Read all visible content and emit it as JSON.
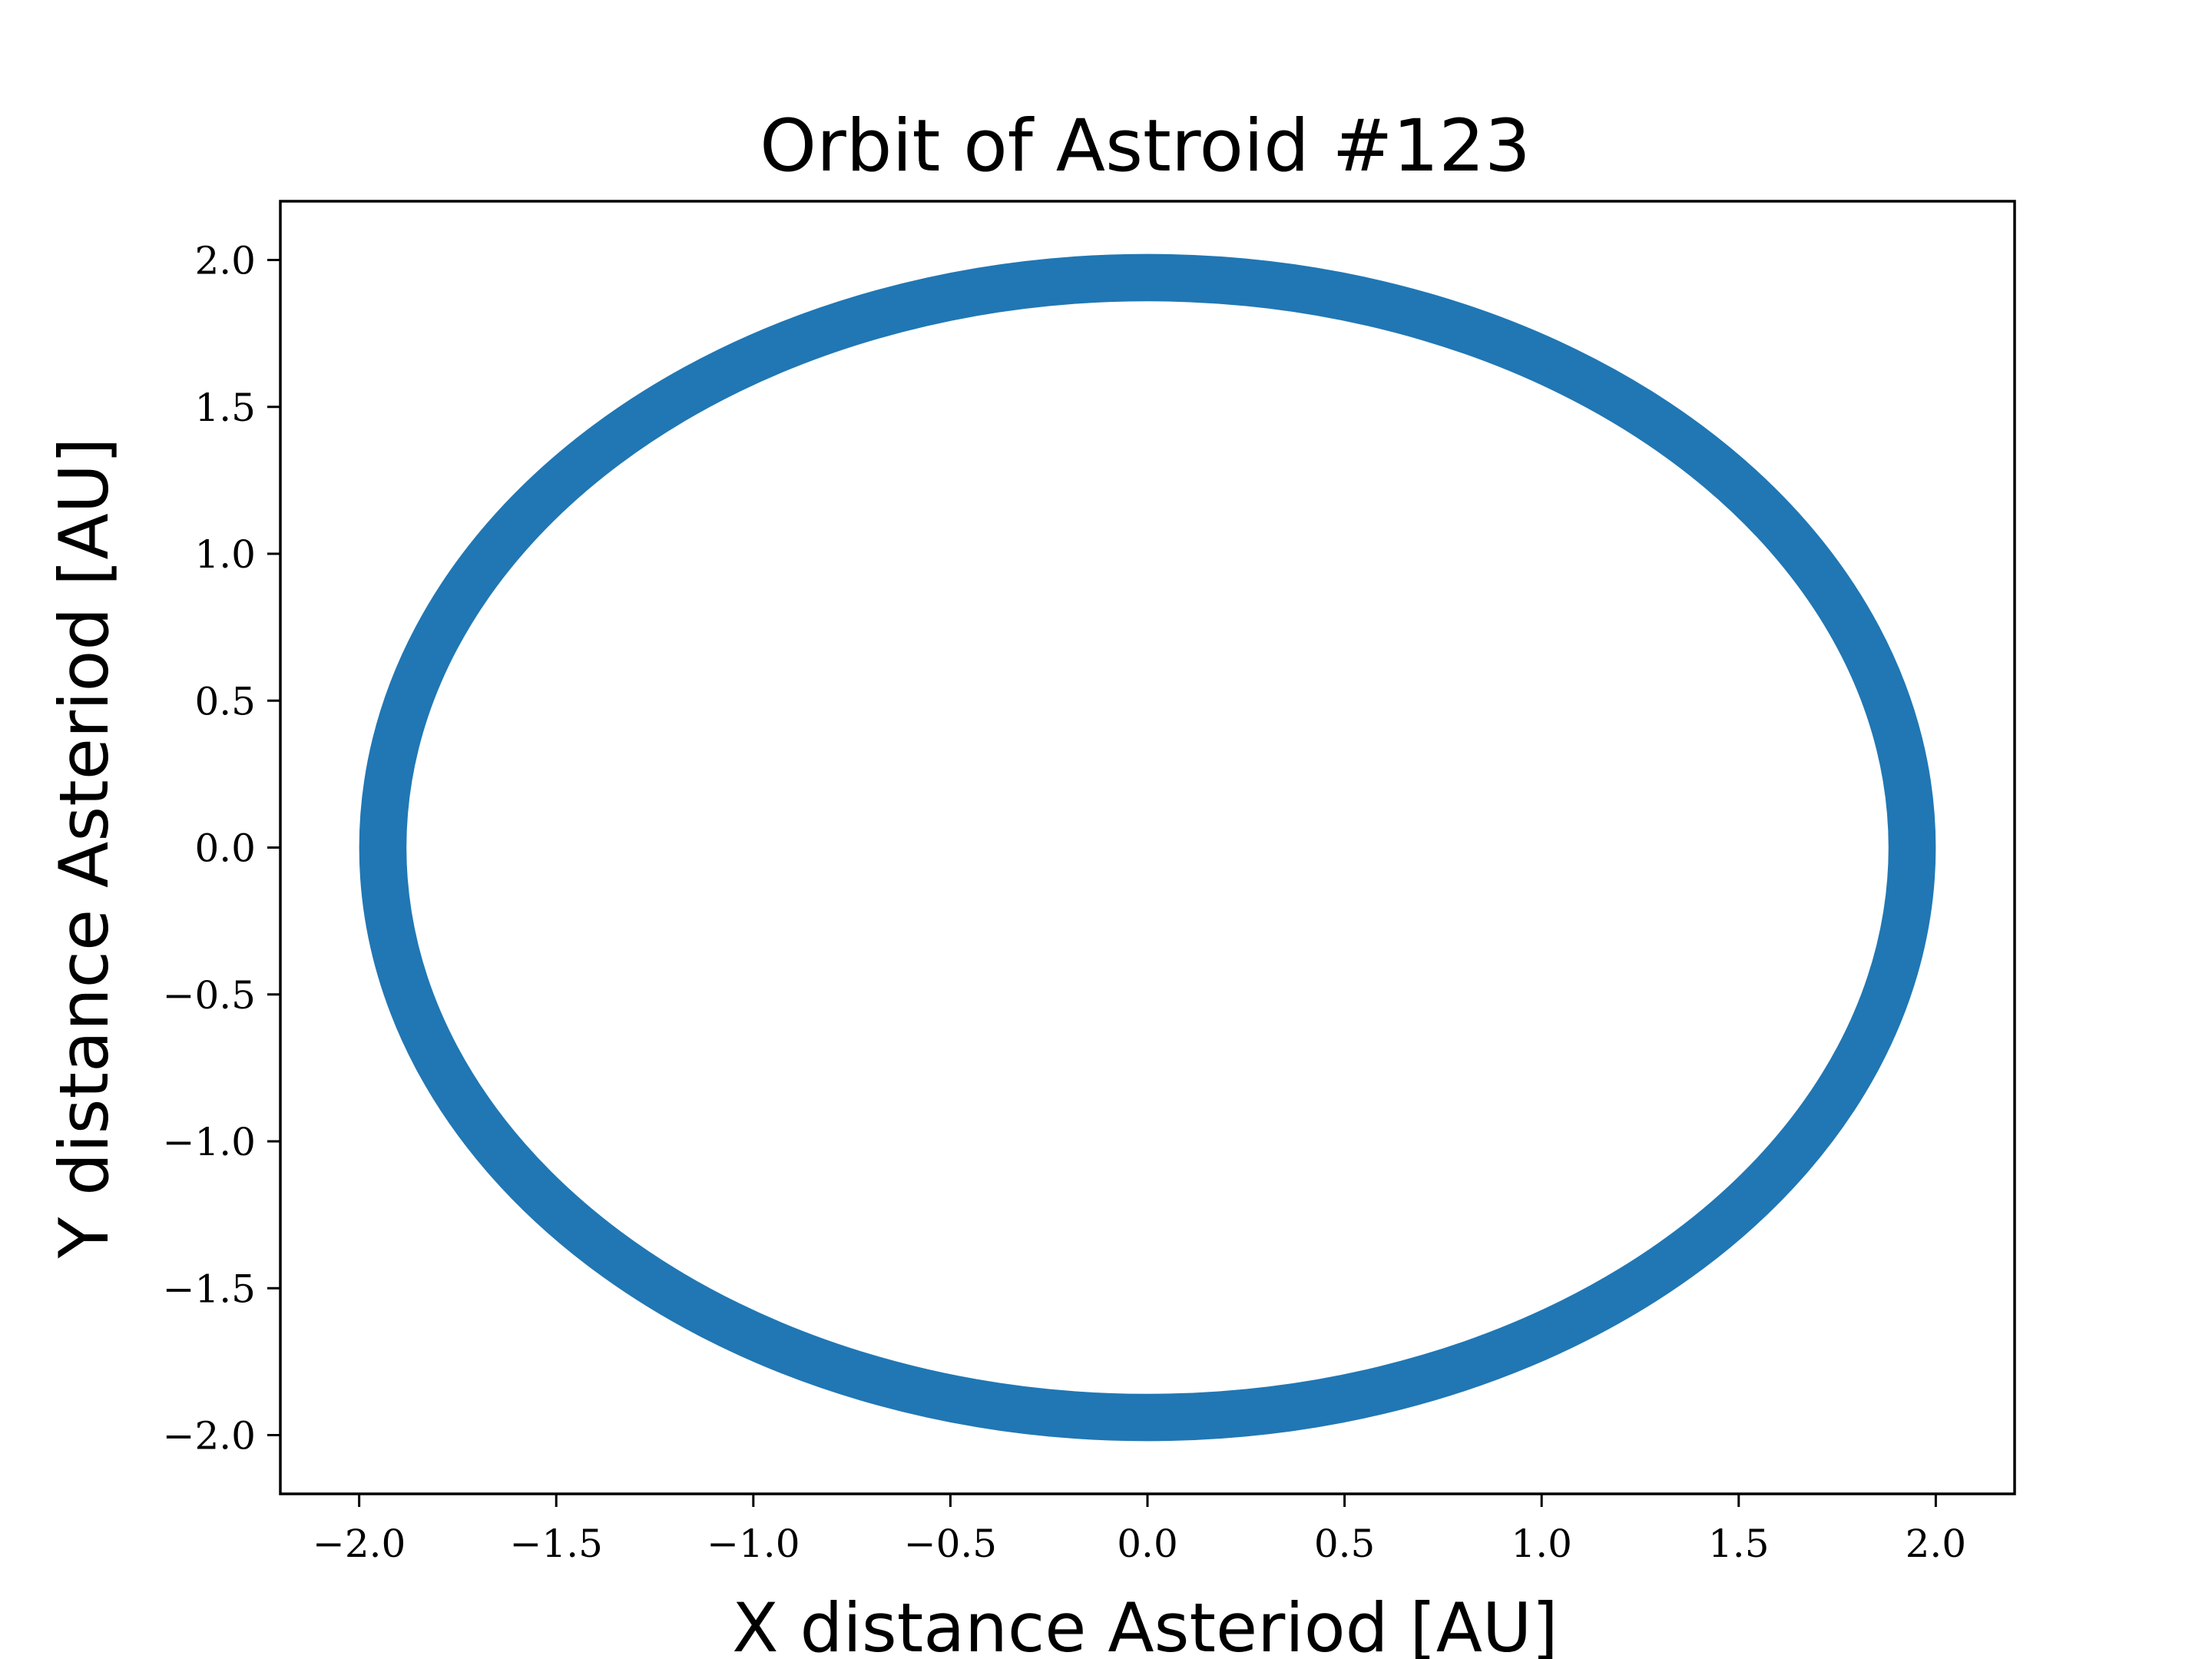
{
  "chart_data": {
    "type": "line",
    "title": "Orbit of Astroid #123",
    "xlabel": "X distance Asteriod [AU]",
    "ylabel": "Y distance Asteriod [AU]",
    "xlim": [
      -2.2,
      2.2
    ],
    "ylim": [
      -2.2,
      2.2
    ],
    "xticks": [
      -2.0,
      -1.5,
      -1.0,
      -0.5,
      0.0,
      0.5,
      1.0,
      1.5,
      2.0
    ],
    "yticks": [
      -2.0,
      -1.5,
      -1.0,
      -0.5,
      0.0,
      0.5,
      1.0,
      1.5,
      2.0
    ],
    "xtick_labels": [
      "−2.0",
      "−1.5",
      "−1.0",
      "−0.5",
      "0.0",
      "0.5",
      "1.0",
      "1.5",
      "2.0"
    ],
    "ytick_labels": [
      "−2.0",
      "−1.5",
      "−1.0",
      "−0.5",
      "0.0",
      "0.5",
      "1.0",
      "1.5",
      "2.0"
    ],
    "grid": false,
    "series": [
      {
        "color": "#2077b4",
        "shape": "ellipse",
        "center": [
          0.0,
          0.0
        ],
        "semi_axes": [
          1.94,
          1.94
        ],
        "band_inner_radius": 1.88,
        "band_outer_radius": 2.0
      }
    ]
  }
}
